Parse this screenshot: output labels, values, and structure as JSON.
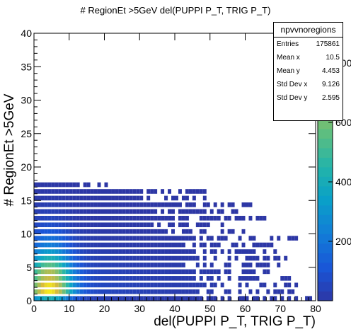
{
  "chart_data": {
    "type": "heatmap",
    "title": "# RegionEt >5GeV del(PUPPI P_T, TRIG P_T)",
    "xlabel": "del(PUPPI P_T, TRIG P_T)",
    "ylabel": "# RegionEt >5GeV",
    "xlim": [
      0,
      80
    ],
    "ylim": [
      0,
      40
    ],
    "x_ticks": [
      "0",
      "10",
      "20",
      "30",
      "40",
      "50",
      "60",
      "70",
      "80"
    ],
    "y_ticks": [
      "0",
      "5",
      "10",
      "15",
      "20",
      "25",
      "30",
      "35",
      "40"
    ],
    "z_ticks": [
      "200",
      "400",
      "600",
      "800"
    ],
    "zlim": [
      0,
      900
    ],
    "row_y_values": [
      1,
      2,
      3,
      4,
      5,
      6,
      7,
      8,
      9,
      10,
      11,
      12,
      13,
      14,
      15,
      16,
      17,
      18
    ],
    "row_extent_x": [
      79,
      76,
      75,
      75,
      73,
      70,
      72,
      71,
      68,
      76,
      63,
      56,
      66,
      58,
      62,
      49,
      49,
      21
    ],
    "row_peak_counts": [
      420,
      900,
      880,
      770,
      720,
      560,
      430,
      330,
      230,
      190,
      120,
      80,
      50,
      35,
      25,
      12,
      8,
      3
    ],
    "stats": {
      "name": "npvvnoregions",
      "rows": [
        {
          "label": "Entries",
          "value": "175861"
        },
        {
          "label": "Mean x",
          "value": "10.5"
        },
        {
          "label": "Mean y",
          "value": "4.453"
        },
        {
          "label": "Std Dev x",
          "value": "9.126"
        },
        {
          "label": "Std Dev y",
          "value": "2.595"
        }
      ]
    }
  }
}
